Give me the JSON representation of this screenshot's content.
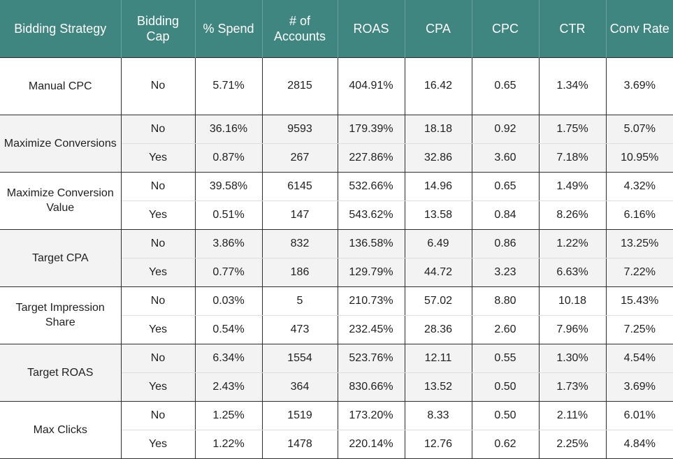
{
  "headers": [
    "Bidding Strategy",
    "Bidding Cap",
    "% Spend",
    "# of Accounts",
    "ROAS",
    "CPA",
    "CPC",
    "CTR",
    "Conv Rate"
  ],
  "groups": [
    {
      "strategy": "Manual CPC",
      "rows": [
        {
          "cap": "No",
          "spend": "5.71%",
          "accounts": "2815",
          "roas": "404.91%",
          "cpa": "16.42",
          "cpc": "0.65",
          "ctr": "1.34%",
          "conv": "3.69%"
        }
      ]
    },
    {
      "strategy": "Maximize Conversions",
      "rows": [
        {
          "cap": "No",
          "spend": "36.16%",
          "accounts": "9593",
          "roas": "179.39%",
          "cpa": "18.18",
          "cpc": "0.92",
          "ctr": "1.75%",
          "conv": "5.07%"
        },
        {
          "cap": "Yes",
          "spend": "0.87%",
          "accounts": "267",
          "roas": "227.86%",
          "cpa": "32.86",
          "cpc": "3.60",
          "ctr": "7.18%",
          "conv": "10.95%"
        }
      ]
    },
    {
      "strategy": "Maximize Conversion Value",
      "rows": [
        {
          "cap": "No",
          "spend": "39.58%",
          "accounts": "6145",
          "roas": "532.66%",
          "cpa": "14.96",
          "cpc": "0.65",
          "ctr": "1.49%",
          "conv": "4.32%"
        },
        {
          "cap": "Yes",
          "spend": "0.51%",
          "accounts": "147",
          "roas": "543.62%",
          "cpa": "13.58",
          "cpc": "0.84",
          "ctr": "8.26%",
          "conv": "6.16%"
        }
      ]
    },
    {
      "strategy": "Target CPA",
      "rows": [
        {
          "cap": "No",
          "spend": "3.86%",
          "accounts": "832",
          "roas": "136.58%",
          "cpa": "6.49",
          "cpc": "0.86",
          "ctr": "1.22%",
          "conv": "13.25%"
        },
        {
          "cap": "Yes",
          "spend": "0.77%",
          "accounts": "186",
          "roas": "129.79%",
          "cpa": "44.72",
          "cpc": "3.23",
          "ctr": "6.63%",
          "conv": "7.22%"
        }
      ]
    },
    {
      "strategy": "Target Impression Share",
      "rows": [
        {
          "cap": "No",
          "spend": "0.03%",
          "accounts": "5",
          "roas": "210.73%",
          "cpa": "57.02",
          "cpc": "8.80",
          "ctr": "10.18",
          "conv": "15.43%"
        },
        {
          "cap": "Yes",
          "spend": "0.54%",
          "accounts": "473",
          "roas": "232.45%",
          "cpa": "28.36",
          "cpc": "2.60",
          "ctr": "7.96%",
          "conv": "7.25%"
        }
      ]
    },
    {
      "strategy": "Target ROAS",
      "rows": [
        {
          "cap": "No",
          "spend": "6.34%",
          "accounts": "1554",
          "roas": "523.76%",
          "cpa": "12.11",
          "cpc": "0.55",
          "ctr": "1.30%",
          "conv": "4.54%"
        },
        {
          "cap": "Yes",
          "spend": "2.43%",
          "accounts": "364",
          "roas": "830.66%",
          "cpa": "13.52",
          "cpc": "0.50",
          "ctr": "1.73%",
          "conv": "3.69%"
        }
      ]
    },
    {
      "strategy": "Max Clicks",
      "rows": [
        {
          "cap": "No",
          "spend": "1.25%",
          "accounts": "1519",
          "roas": "173.20%",
          "cpa": "8.33",
          "cpc": "0.50",
          "ctr": "2.11%",
          "conv": "6.01%"
        },
        {
          "cap": "Yes",
          "spend": "1.22%",
          "accounts": "1478",
          "roas": "220.14%",
          "cpa": "12.76",
          "cpc": "0.62",
          "ctr": "2.25%",
          "conv": "4.84%"
        }
      ]
    }
  ],
  "colors": {
    "header_bg": "#3f8580",
    "header_text": "#ffffff",
    "shaded_group_bg": "#f3f3f3"
  }
}
